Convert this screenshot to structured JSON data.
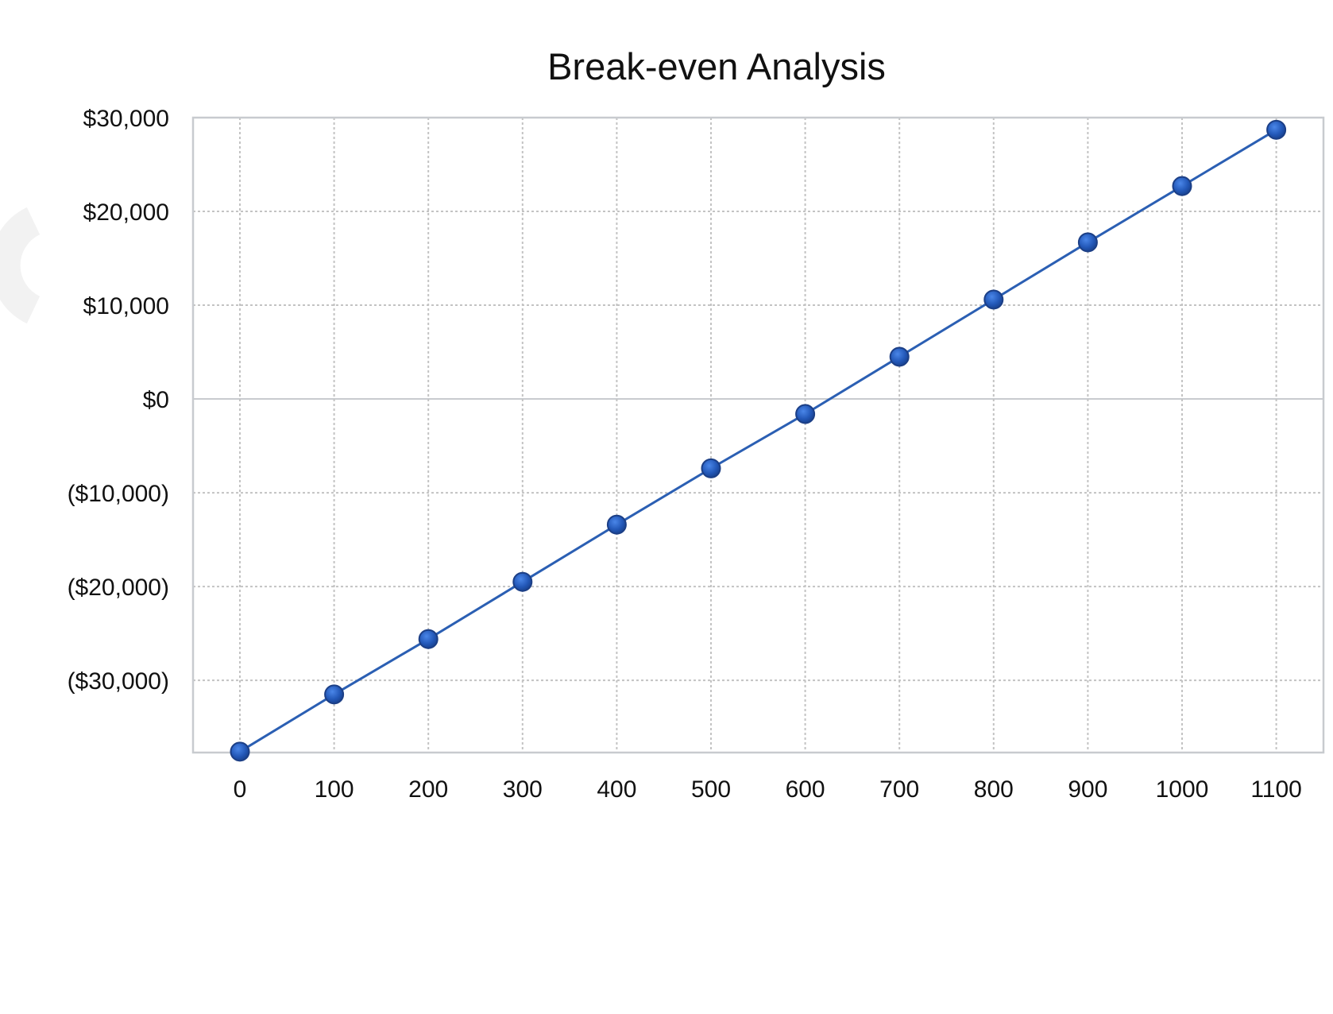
{
  "chart_data": {
    "type": "line",
    "title": "Break-even Analysis",
    "xlabel": "",
    "ylabel": "",
    "x": [
      0,
      100,
      200,
      300,
      400,
      500,
      600,
      700,
      800,
      900,
      1000,
      1100
    ],
    "x_tick_labels": [
      "0",
      "100",
      "200",
      "300",
      "400",
      "500",
      "600",
      "700",
      "800",
      "900",
      "1000",
      "1100"
    ],
    "y_ticks": [
      30000,
      20000,
      10000,
      0,
      -10000,
      -20000,
      -30000
    ],
    "y_tick_labels": [
      "$30,000",
      "$20,000",
      "$10,000",
      "$0",
      "($10,000)",
      "($20,000)",
      "($30,000)"
    ],
    "ylim": [
      -37700,
      30000
    ],
    "grid": true,
    "legend": "none",
    "series": [
      {
        "values": [
          -37600,
          -31500,
          -25600,
          -19500,
          -13400,
          -7400,
          -1600,
          4500,
          10600,
          16700,
          22700,
          28700
        ],
        "color": "#2b5fb3",
        "marker": "circle"
      }
    ]
  }
}
